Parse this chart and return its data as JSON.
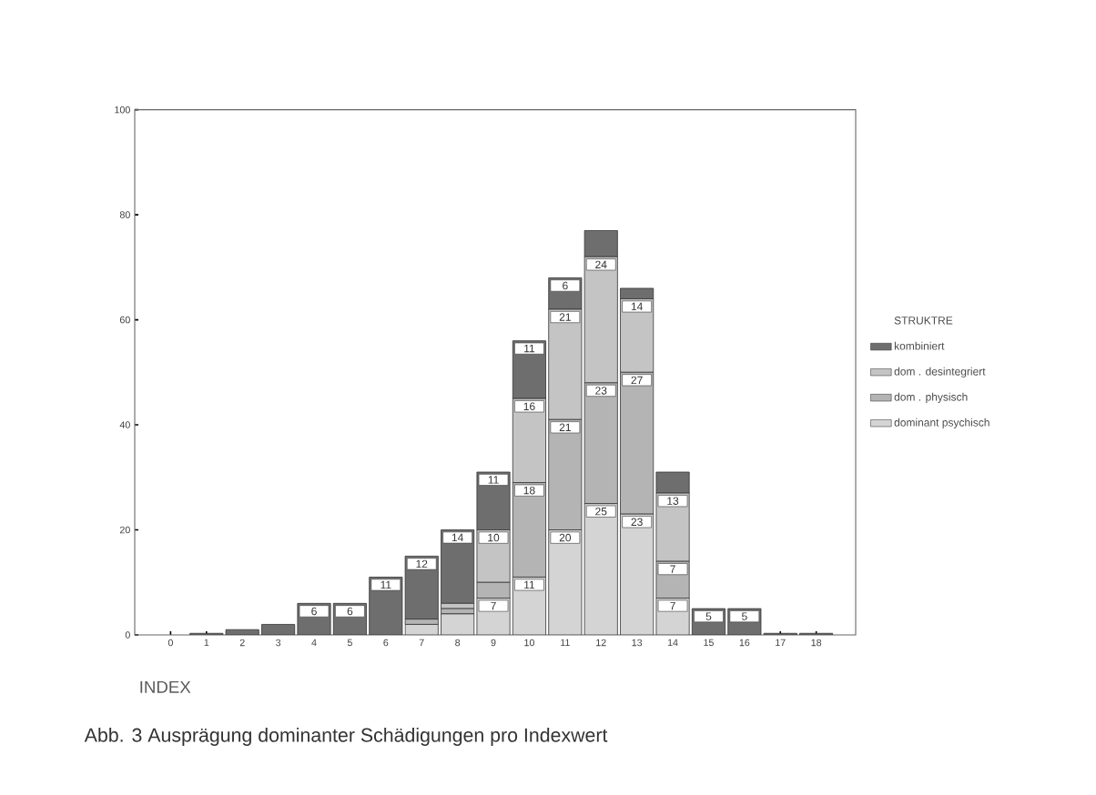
{
  "chart_data": {
    "type": "bar",
    "stacked": true,
    "categories": [
      "0",
      "1",
      "2",
      "3",
      "4",
      "5",
      "6",
      "7",
      "8",
      "9",
      "10",
      "11",
      "12",
      "13",
      "14",
      "15",
      "16",
      "17",
      "18"
    ],
    "series": [
      {
        "name": "dominant psychisch",
        "color": "#d4d4d4",
        "values": [
          0,
          0,
          0,
          0,
          0,
          0,
          0,
          2,
          4,
          7,
          11,
          20,
          25,
          23,
          7,
          0,
          0,
          0,
          0
        ],
        "value_labels": [
          null,
          null,
          null,
          null,
          null,
          null,
          null,
          null,
          null,
          "7",
          "11",
          "20",
          "25",
          "23",
          "7",
          null,
          null,
          null,
          null
        ]
      },
      {
        "name": "dom . physisch",
        "color": "#b4b4b4",
        "values": [
          0,
          0,
          0,
          0,
          0,
          0,
          0,
          1,
          1,
          3,
          18,
          21,
          23,
          27,
          7,
          0,
          0,
          0,
          0
        ],
        "value_labels": [
          null,
          null,
          null,
          null,
          null,
          null,
          null,
          null,
          null,
          null,
          "18",
          "21",
          "23",
          "27",
          "7",
          null,
          null,
          null,
          null
        ]
      },
      {
        "name": "dom . desintegriert",
        "color": "#c4c4c4",
        "values": [
          0,
          0,
          0,
          0,
          0,
          0,
          0,
          0,
          1,
          10,
          16,
          21,
          24,
          14,
          13,
          0,
          0,
          0,
          0
        ],
        "value_labels": [
          null,
          null,
          null,
          null,
          null,
          null,
          null,
          null,
          null,
          "10",
          "16",
          "21",
          "24",
          "14",
          "13",
          null,
          null,
          null,
          null
        ]
      },
      {
        "name": "kombiniert",
        "color": "#6e6e6e",
        "values": [
          0,
          0.3,
          1,
          2,
          6,
          6,
          11,
          12,
          14,
          11,
          11,
          6,
          5,
          2,
          4,
          5,
          5,
          0.3,
          0.3
        ],
        "value_labels": [
          null,
          null,
          null,
          null,
          "6",
          "6",
          "11",
          "12",
          "14",
          "11",
          "11",
          "6",
          null,
          null,
          null,
          "5",
          "5",
          null,
          null
        ]
      }
    ],
    "ylim": [
      0,
      100
    ],
    "yticks": [
      0,
      20,
      40,
      60,
      80,
      100
    ],
    "xlabel": "INDEX",
    "legend_title": "STRUKTRE",
    "legend": "right",
    "grid": false,
    "annotations": [
      "Abb. 3 Ausprägung dominanter Schädigungen pro Indexwert"
    ]
  }
}
